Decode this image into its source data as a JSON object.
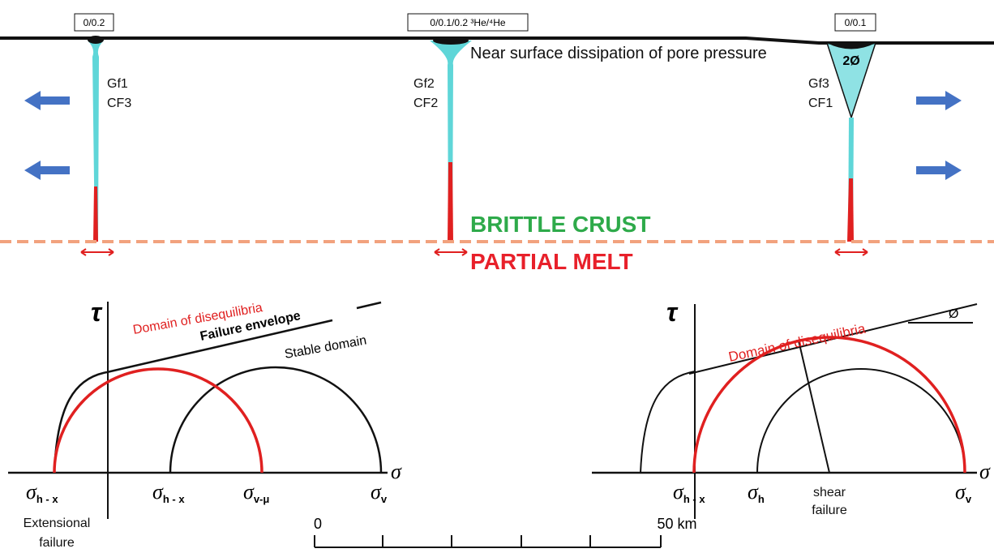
{
  "surface_labels": [
    "0/0.2",
    "0/0.1/0.2 ³He/⁴He",
    "0/0.1"
  ],
  "surface_note": "Near surface dissipation of pore pressure",
  "cone_angle": "2Ø",
  "faults": [
    {
      "gf": "Gf1",
      "cf": "CF3"
    },
    {
      "gf": "Gf2",
      "cf": "CF2"
    },
    {
      "gf": "Gf3",
      "cf": "CF1"
    }
  ],
  "layers": {
    "upper": "BRITTLE CRUST",
    "lower": "PARTIAL MELT"
  },
  "left_diagram": {
    "tau": "τ",
    "sigma": "σ",
    "domain": "Domain of disequilibria",
    "envelope": "Failure envelope",
    "stable": "Stable domain",
    "stress_labels": [
      {
        "symbol": "σ",
        "sub": "h - x"
      },
      {
        "symbol": "σ",
        "sub": "h - x"
      },
      {
        "symbol": "σ",
        "sub": "v-μ"
      },
      {
        "symbol": "σ",
        "sub": "v"
      }
    ],
    "note": [
      "Extensional",
      "failure"
    ]
  },
  "right_diagram": {
    "tau": "τ",
    "sigma": "σ",
    "domain": "Domain of disequilibria",
    "angle": "Ø",
    "stress_labels": [
      {
        "symbol": "σ",
        "sub": "h - x"
      },
      {
        "symbol": "σ",
        "sub": "h"
      },
      {
        "symbol": "σ",
        "sub": "v"
      }
    ],
    "note": [
      "shear",
      "failure"
    ]
  },
  "scale": {
    "start": "0",
    "end": "50 km"
  }
}
